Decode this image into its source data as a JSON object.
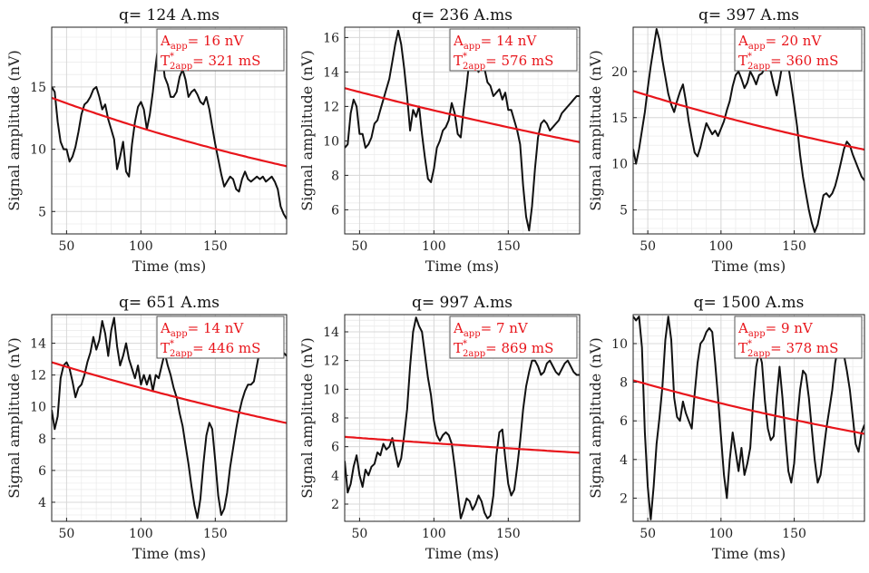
{
  "chart_data": [
    {
      "type": "line",
      "title": "q= 124 A.ms",
      "xlabel": "Time (ms)",
      "ylabel": "Signal amplitude (nV)",
      "xlim": [
        40,
        198
      ],
      "ylim": [
        3.2,
        19.8
      ],
      "xticks": [
        50,
        100,
        150
      ],
      "yticks": [
        5,
        10,
        15
      ],
      "grid": true,
      "annotation": {
        "a_label": "A",
        "a_sub": "app",
        "a_value": "= 16 nV",
        "t_label": "T",
        "t_sup": "*",
        "t_sub": "2app",
        "t_value": "= 321 mS"
      },
      "fit": {
        "A": 16,
        "T2": 321
      },
      "x": [
        40,
        42,
        44,
        46,
        48,
        50,
        52,
        54,
        56,
        58,
        60,
        62,
        64,
        66,
        68,
        70,
        72,
        74,
        76,
        78,
        80,
        82,
        84,
        86,
        88,
        90,
        92,
        94,
        96,
        98,
        100,
        102,
        104,
        106,
        108,
        110,
        112,
        114,
        116,
        118,
        120,
        122,
        124,
        126,
        128,
        130,
        132,
        134,
        136,
        138,
        140,
        142,
        144,
        146,
        148,
        150,
        152,
        154,
        156,
        158,
        160,
        162,
        164,
        166,
        168,
        170,
        172,
        174,
        176,
        178,
        180,
        182,
        184,
        186,
        188,
        190,
        192,
        194,
        196,
        198
      ],
      "values": [
        15.0,
        14.6,
        12.2,
        10.6,
        10.0,
        10.0,
        9.0,
        9.4,
        10.2,
        11.4,
        12.8,
        13.6,
        13.8,
        14.2,
        14.8,
        15.0,
        14.2,
        13.2,
        13.6,
        12.4,
        11.6,
        10.8,
        8.4,
        9.4,
        10.6,
        8.2,
        7.8,
        10.4,
        12.2,
        13.4,
        13.8,
        13.2,
        11.6,
        12.8,
        14.6,
        16.8,
        18.6,
        17.8,
        15.8,
        15.2,
        14.2,
        14.2,
        14.6,
        15.8,
        16.4,
        15.6,
        14.2,
        14.6,
        14.8,
        14.4,
        13.8,
        13.6,
        14.2,
        13.2,
        11.8,
        10.4,
        9.2,
        8.0,
        7.0,
        7.4,
        7.8,
        7.6,
        6.8,
        6.6,
        7.6,
        8.2,
        7.6,
        7.4,
        7.6,
        7.8,
        7.6,
        7.8,
        7.4,
        7.6,
        7.8,
        7.4,
        6.8,
        5.4,
        4.8,
        4.4
      ]
    },
    {
      "type": "line",
      "title": "q= 236 A.ms",
      "xlabel": "Time (ms)",
      "ylabel": "Signal amplitude (nV)",
      "xlim": [
        40,
        198
      ],
      "ylim": [
        4.6,
        16.6
      ],
      "xticks": [
        50,
        100,
        150
      ],
      "yticks": [
        6,
        8,
        10,
        12,
        14,
        16
      ],
      "grid": true,
      "annotation": {
        "a_label": "A",
        "a_sub": "app",
        "a_value": "= 14 nV",
        "t_label": "T",
        "t_sup": "*",
        "t_sub": "2app",
        "t_value": "= 576 mS"
      },
      "fit": {
        "A": 14,
        "T2": 576
      },
      "x": [
        40,
        42,
        44,
        46,
        48,
        50,
        52,
        54,
        56,
        58,
        60,
        62,
        64,
        66,
        68,
        70,
        72,
        74,
        76,
        78,
        80,
        82,
        84,
        86,
        88,
        90,
        92,
        94,
        96,
        98,
        100,
        102,
        104,
        106,
        108,
        110,
        112,
        114,
        116,
        118,
        120,
        122,
        124,
        126,
        128,
        130,
        132,
        134,
        136,
        138,
        140,
        142,
        144,
        146,
        148,
        150,
        152,
        154,
        156,
        158,
        160,
        162,
        164,
        166,
        168,
        170,
        172,
        174,
        176,
        178,
        180,
        182,
        184,
        186,
        188,
        190,
        192,
        194,
        196,
        198
      ],
      "values": [
        9.6,
        9.8,
        11.6,
        12.4,
        12.0,
        10.4,
        10.4,
        9.6,
        9.8,
        10.2,
        11.0,
        11.2,
        11.8,
        12.4,
        13.0,
        13.6,
        14.6,
        15.6,
        16.4,
        15.6,
        14.2,
        12.6,
        10.6,
        11.8,
        11.4,
        12.0,
        10.4,
        9.0,
        7.8,
        7.6,
        8.4,
        9.6,
        10.0,
        10.6,
        10.8,
        11.2,
        12.2,
        11.6,
        10.4,
        10.2,
        11.8,
        13.2,
        14.8,
        15.4,
        14.6,
        14.0,
        14.4,
        14.2,
        13.4,
        13.2,
        12.6,
        12.8,
        13.0,
        12.4,
        12.8,
        11.8,
        11.8,
        11.2,
        10.6,
        9.8,
        7.4,
        5.6,
        4.8,
        6.2,
        8.4,
        10.2,
        11.0,
        11.2,
        11.0,
        10.6,
        10.8,
        11.0,
        11.2,
        11.6,
        11.8,
        12.0,
        12.2,
        12.4,
        12.6,
        12.6
      ]
    },
    {
      "type": "line",
      "title": "q= 397 A.ms",
      "xlabel": "Time (ms)",
      "ylabel": "Signal amplitude (nV)",
      "xlim": [
        40,
        198
      ],
      "ylim": [
        2.4,
        24.8
      ],
      "xticks": [
        50,
        100,
        150
      ],
      "yticks": [
        5,
        10,
        15,
        20
      ],
      "grid": true,
      "annotation": {
        "a_label": "A",
        "a_sub": "app",
        "a_value": "= 20 nV",
        "t_label": "T",
        "t_sup": "*",
        "t_sub": "2app",
        "t_value": "= 360 mS"
      },
      "fit": {
        "A": 20,
        "T2": 360
      },
      "x": [
        40,
        42,
        44,
        46,
        48,
        50,
        52,
        54,
        56,
        58,
        60,
        62,
        64,
        66,
        68,
        70,
        72,
        74,
        76,
        78,
        80,
        82,
        84,
        86,
        88,
        90,
        92,
        94,
        96,
        98,
        100,
        102,
        104,
        106,
        108,
        110,
        112,
        114,
        116,
        118,
        120,
        122,
        124,
        126,
        128,
        130,
        132,
        134,
        136,
        138,
        140,
        142,
        144,
        146,
        148,
        150,
        152,
        154,
        156,
        158,
        160,
        162,
        164,
        166,
        168,
        170,
        172,
        174,
        176,
        178,
        180,
        182,
        184,
        186,
        188,
        190,
        192,
        194,
        196,
        198
      ],
      "values": [
        11.6,
        10.0,
        11.6,
        13.6,
        15.6,
        18.2,
        20.6,
        22.6,
        24.6,
        23.4,
        21.2,
        19.4,
        17.6,
        16.4,
        15.6,
        16.8,
        17.8,
        18.6,
        16.8,
        14.6,
        12.8,
        11.2,
        10.8,
        11.8,
        13.2,
        14.4,
        13.8,
        13.2,
        13.6,
        13.0,
        13.8,
        14.6,
        15.8,
        16.8,
        18.4,
        19.6,
        20.0,
        19.2,
        18.2,
        18.8,
        20.0,
        19.4,
        18.6,
        19.6,
        19.8,
        20.4,
        20.8,
        20.0,
        18.6,
        17.4,
        19.0,
        20.8,
        21.4,
        20.6,
        18.6,
        16.4,
        14.0,
        11.0,
        8.6,
        6.8,
        5.0,
        3.6,
        2.6,
        3.4,
        5.0,
        6.6,
        6.8,
        6.4,
        6.8,
        7.6,
        8.8,
        10.2,
        11.6,
        12.4,
        12.0,
        11.0,
        10.2,
        9.4,
        8.6,
        8.2
      ]
    },
    {
      "type": "line",
      "title": "q= 651 A.ms",
      "xlabel": "Time (ms)",
      "ylabel": "Signal amplitude (nV)",
      "xlim": [
        40,
        198
      ],
      "ylim": [
        2.8,
        15.8
      ],
      "xticks": [
        50,
        100,
        150
      ],
      "yticks": [
        4,
        6,
        8,
        10,
        12,
        14
      ],
      "grid": true,
      "annotation": {
        "a_label": "A",
        "a_sub": "app",
        "a_value": "= 14 nV",
        "t_label": "T",
        "t_sup": "*",
        "t_sub": "2app",
        "t_value": "= 446 mS"
      },
      "fit": {
        "A": 14,
        "T2": 446
      },
      "x": [
        40,
        42,
        44,
        46,
        48,
        50,
        52,
        54,
        56,
        58,
        60,
        62,
        64,
        66,
        68,
        70,
        72,
        74,
        76,
        78,
        80,
        82,
        84,
        86,
        88,
        90,
        92,
        94,
        96,
        98,
        100,
        102,
        104,
        106,
        108,
        110,
        112,
        114,
        116,
        118,
        120,
        122,
        124,
        126,
        128,
        130,
        132,
        134,
        136,
        138,
        140,
        142,
        144,
        146,
        148,
        150,
        152,
        154,
        156,
        158,
        160,
        162,
        164,
        166,
        168,
        170,
        172,
        174,
        176,
        178,
        180,
        182,
        184,
        186,
        188,
        190,
        192,
        194,
        196,
        198
      ],
      "values": [
        9.8,
        8.6,
        9.4,
        11.8,
        12.6,
        12.8,
        12.4,
        11.6,
        10.6,
        11.2,
        11.4,
        12.0,
        12.8,
        13.4,
        14.4,
        13.6,
        14.2,
        15.4,
        14.6,
        13.2,
        14.8,
        15.6,
        13.8,
        12.6,
        13.2,
        14.0,
        13.0,
        12.4,
        11.8,
        12.6,
        11.4,
        12.0,
        11.4,
        12.0,
        11.0,
        12.0,
        11.8,
        12.6,
        13.4,
        12.6,
        12.0,
        11.2,
        10.6,
        9.6,
        8.8,
        7.6,
        6.4,
        5.0,
        3.8,
        3.0,
        4.2,
        6.4,
        8.2,
        9.0,
        8.6,
        6.6,
        4.4,
        3.2,
        3.6,
        4.6,
        6.2,
        7.4,
        8.6,
        9.6,
        10.4,
        11.0,
        11.4,
        11.4,
        11.6,
        12.6,
        13.6,
        14.2,
        14.6,
        15.0,
        15.2,
        15.0,
        14.4,
        13.8,
        13.4,
        13.2
      ]
    },
    {
      "type": "line",
      "title": "q= 997 A.ms",
      "xlabel": "Time (ms)",
      "ylabel": "Signal amplitude (nV)",
      "xlim": [
        40,
        198
      ],
      "ylim": [
        0.8,
        15.2
      ],
      "xticks": [
        50,
        100,
        150
      ],
      "yticks": [
        2,
        4,
        6,
        8,
        10,
        12,
        14
      ],
      "grid": true,
      "annotation": {
        "a_label": "A",
        "a_sub": "app",
        "a_value": "= 7 nV",
        "t_label": "T",
        "t_sup": "*",
        "t_sub": "2app",
        "t_value": "= 869 mS"
      },
      "fit": {
        "A": 7,
        "T2": 869
      },
      "x": [
        40,
        42,
        44,
        46,
        48,
        50,
        52,
        54,
        56,
        58,
        60,
        62,
        64,
        66,
        68,
        70,
        72,
        74,
        76,
        78,
        80,
        82,
        84,
        86,
        88,
        90,
        92,
        94,
        96,
        98,
        100,
        102,
        104,
        106,
        108,
        110,
        112,
        114,
        116,
        118,
        120,
        122,
        124,
        126,
        128,
        130,
        132,
        134,
        136,
        138,
        140,
        142,
        144,
        146,
        148,
        150,
        152,
        154,
        156,
        158,
        160,
        162,
        164,
        166,
        168,
        170,
        172,
        174,
        176,
        178,
        180,
        182,
        184,
        186,
        188,
        190,
        192,
        194,
        196,
        198
      ],
      "values": [
        5.0,
        2.8,
        3.4,
        4.6,
        5.4,
        4.0,
        3.2,
        4.4,
        4.0,
        4.6,
        4.8,
        5.6,
        5.4,
        6.2,
        5.8,
        6.0,
        6.6,
        5.6,
        4.6,
        5.2,
        6.8,
        8.6,
        11.6,
        14.0,
        15.0,
        14.4,
        14.0,
        12.4,
        10.8,
        9.6,
        7.8,
        6.8,
        6.4,
        6.8,
        7.0,
        6.8,
        6.2,
        4.6,
        2.8,
        1.0,
        1.6,
        2.4,
        2.2,
        1.6,
        2.0,
        2.6,
        2.2,
        1.4,
        1.0,
        1.2,
        2.6,
        5.4,
        7.0,
        7.2,
        5.2,
        3.4,
        2.6,
        3.0,
        4.6,
        6.4,
        8.6,
        10.2,
        11.2,
        12.0,
        12.0,
        11.6,
        11.0,
        11.2,
        11.8,
        12.0,
        11.6,
        11.2,
        11.0,
        11.4,
        11.8,
        12.0,
        11.6,
        11.2,
        11.0,
        11.0
      ]
    },
    {
      "type": "line",
      "title": "q= 1500 A.ms",
      "xlabel": "Time (ms)",
      "ylabel": "Signal amplitude (nV)",
      "xlim": [
        40,
        198
      ],
      "ylim": [
        0.8,
        11.5
      ],
      "xticks": [
        50,
        100,
        150
      ],
      "yticks": [
        2,
        4,
        6,
        8,
        10
      ],
      "grid": true,
      "annotation": {
        "a_label": "A",
        "a_sub": "app",
        "a_value": "= 9 nV",
        "t_label": "T",
        "t_sup": "*",
        "t_sub": "2app",
        "t_value": "= 378 mS"
      },
      "fit": {
        "A": 9,
        "T2": 378
      },
      "x": [
        40,
        42,
        44,
        46,
        48,
        50,
        52,
        54,
        56,
        58,
        60,
        62,
        64,
        66,
        68,
        70,
        72,
        74,
        76,
        78,
        80,
        82,
        84,
        86,
        88,
        90,
        92,
        94,
        96,
        98,
        100,
        102,
        104,
        106,
        108,
        110,
        112,
        114,
        116,
        118,
        120,
        122,
        124,
        126,
        128,
        130,
        132,
        134,
        136,
        138,
        140,
        142,
        144,
        146,
        148,
        150,
        152,
        154,
        156,
        158,
        160,
        162,
        164,
        166,
        168,
        170,
        172,
        174,
        176,
        178,
        180,
        182,
        184,
        186,
        188,
        190,
        192,
        194,
        196,
        198
      ],
      "values": [
        11.4,
        11.2,
        11.4,
        9.8,
        5.4,
        2.6,
        0.9,
        2.6,
        4.8,
        6.2,
        7.8,
        10.2,
        11.4,
        10.2,
        7.2,
        6.2,
        6.0,
        7.0,
        6.4,
        6.0,
        5.6,
        7.4,
        9.0,
        10.0,
        10.2,
        10.6,
        10.8,
        10.6,
        9.0,
        7.2,
        5.2,
        3.2,
        2.0,
        4.0,
        5.4,
        4.4,
        3.4,
        4.6,
        3.2,
        3.8,
        4.6,
        7.0,
        8.8,
        9.6,
        9.0,
        7.0,
        5.6,
        5.0,
        5.2,
        7.2,
        8.8,
        7.2,
        5.2,
        3.4,
        2.8,
        3.8,
        6.0,
        7.6,
        8.6,
        8.4,
        7.2,
        5.6,
        4.0,
        2.8,
        3.2,
        4.4,
        5.6,
        6.6,
        7.6,
        9.0,
        9.8,
        10.0,
        9.4,
        8.6,
        7.6,
        6.2,
        4.8,
        4.4,
        5.4,
        5.8
      ]
    }
  ]
}
